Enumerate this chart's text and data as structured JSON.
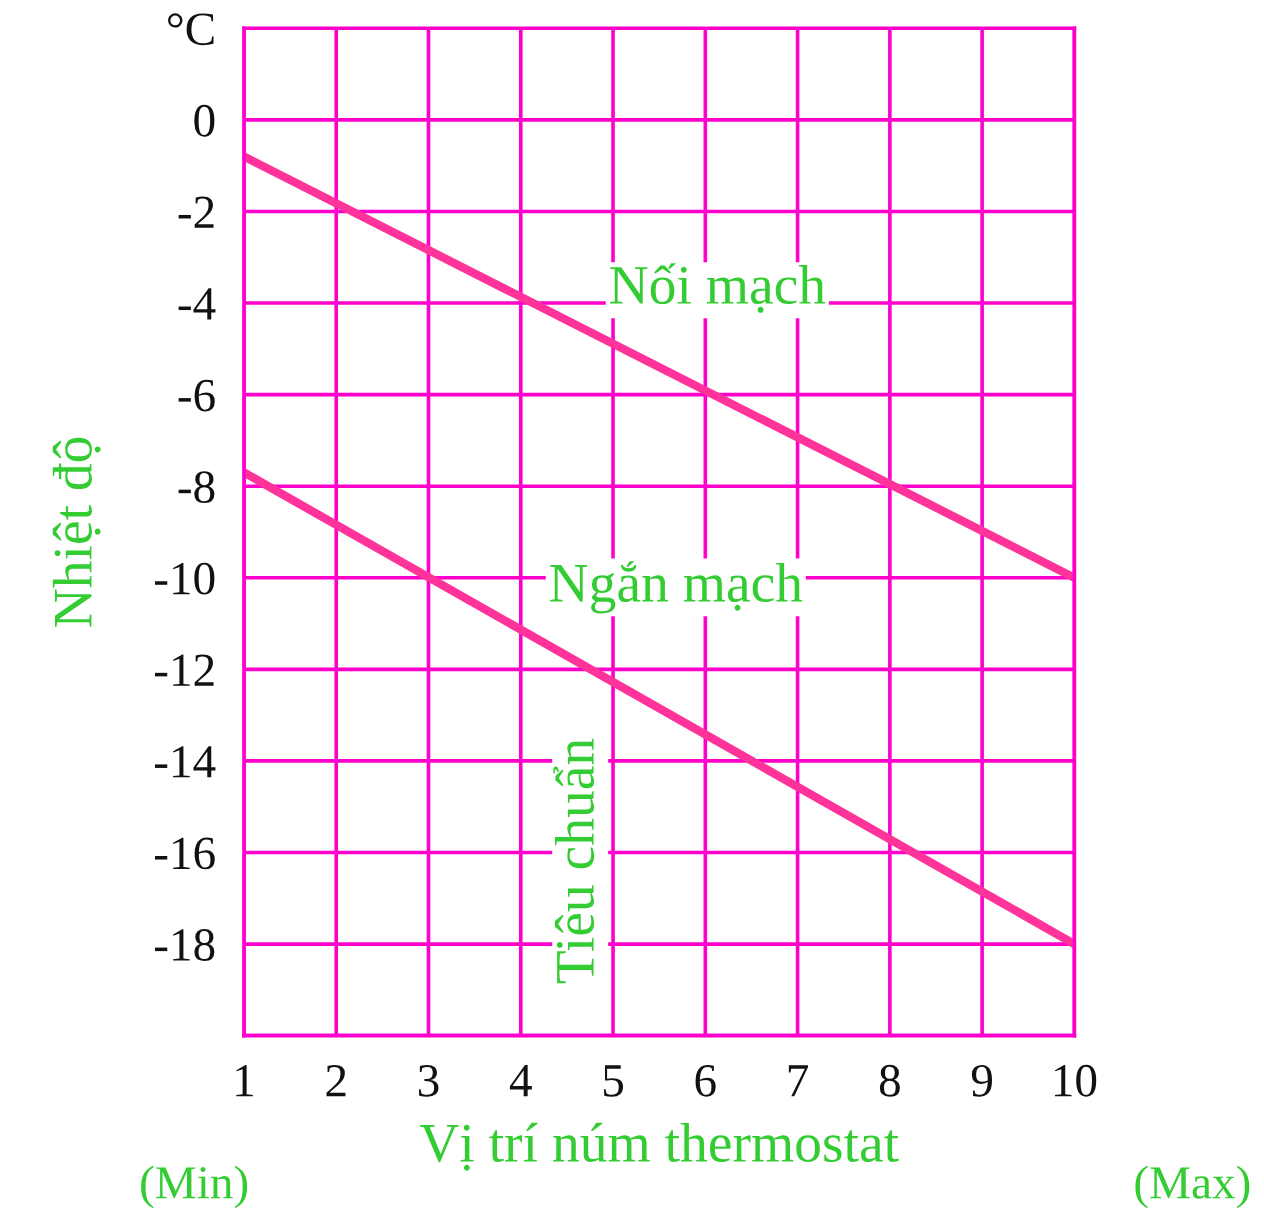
{
  "chart_data": {
    "type": "line",
    "xlabel": "Vị trí núm thermostat",
    "ylabel": "Nhiệt độ",
    "x": [
      1,
      10
    ],
    "series": [
      {
        "name": "Nối mạch",
        "color": "#ff3399",
        "values": [
          -0.8,
          -10
        ]
      },
      {
        "name": "Ngắn mạch",
        "color": "#ff3399",
        "values": [
          -7.7,
          -18
        ]
      }
    ],
    "xlim": [
      1,
      10
    ],
    "xticks": [
      1,
      2,
      3,
      4,
      5,
      6,
      7,
      8,
      9,
      10
    ],
    "ylim": [
      -20,
      2
    ],
    "yticks": [
      {
        "value": 2,
        "label": "°C"
      },
      0,
      -2,
      -4,
      -6,
      -8,
      -10,
      -12,
      -14,
      -16,
      -18,
      {
        "value": -20,
        "label": null
      }
    ],
    "grid": true,
    "legend": false,
    "marker": "none",
    "line_style": "solid",
    "annotations": [
      "Tiêu chuẩn",
      "(Min)",
      "(Max)"
    ]
  }
}
